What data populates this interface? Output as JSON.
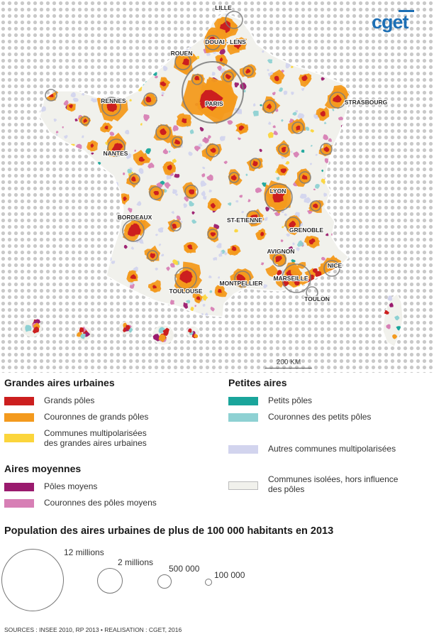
{
  "map": {
    "cities": [
      {
        "name": "LILLE"
      },
      {
        "name": "DOUAI - LENS"
      },
      {
        "name": "ROUEN"
      },
      {
        "name": "PARIS"
      },
      {
        "name": "RENNES"
      },
      {
        "name": "STRASBOURG"
      },
      {
        "name": "NANTES"
      },
      {
        "name": "LYON"
      },
      {
        "name": "BORDEAUX"
      },
      {
        "name": "ST-ETIENNE"
      },
      {
        "name": "GRENOBLE"
      },
      {
        "name": "AVIGNON"
      },
      {
        "name": "MARSEILLE"
      },
      {
        "name": "NICE"
      },
      {
        "name": "TOULOUSE"
      },
      {
        "name": "MONTPELLIER"
      },
      {
        "name": "TOULON"
      }
    ],
    "scale_label": "200 KM"
  },
  "logo": {
    "text": "cget"
  },
  "legend": {
    "grandes": {
      "title": "Grandes aires urbaines",
      "items": [
        {
          "label": "Grands pôles",
          "color": "#cc1f1f"
        },
        {
          "label": "Couronnes de grands pôles",
          "color": "#f39a1e"
        },
        {
          "label_line1": "Communes multipolarisées",
          "label_line2": "des grandes aires urbaines",
          "color": "#fbd53c"
        }
      ]
    },
    "moyennes": {
      "title": "Aires moyennes",
      "items": [
        {
          "label": "Pôles moyens",
          "color": "#9a1a6e"
        },
        {
          "label": "Couronnes des pôles moyens",
          "color": "#d77fb5"
        }
      ]
    },
    "petites": {
      "title": "Petites aires",
      "items": [
        {
          "label": "Petits pôles",
          "color": "#1aa59b"
        },
        {
          "label": "Couronnes des petits pôles",
          "color": "#8ed1d3"
        },
        {
          "label": "Autres communes multipolarisées",
          "color": "#d2d4ee"
        },
        {
          "label_line1": "Communes isolées, hors influence",
          "label_line2": "des pôles",
          "color": "#f1f1ec"
        }
      ]
    }
  },
  "population": {
    "title": "Population des aires urbaines de plus de 100 000 habitants en 2013",
    "circles": [
      {
        "label": "12 millions",
        "value": 12000000
      },
      {
        "label": "2 millions",
        "value": 2000000
      },
      {
        "label": "500 000",
        "value": 500000
      },
      {
        "label": "100 000",
        "value": 100000
      }
    ]
  },
  "sources": "SOURCES : INSEE 2010, RP 2013 • REALISATION : CGET, 2016"
}
